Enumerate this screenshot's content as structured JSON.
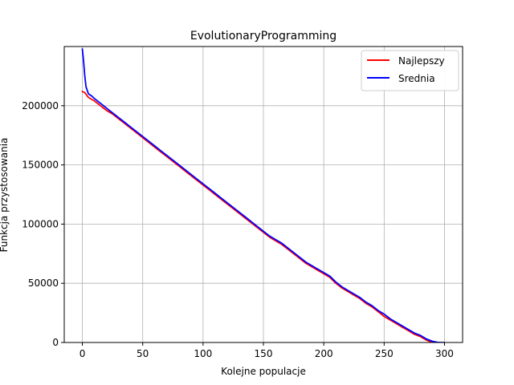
{
  "chart_data": {
    "type": "line",
    "title": "EvolutionaryProgramming",
    "xlabel": "Kolejne populacje",
    "ylabel": "Funkcja przystosowania",
    "xlim": [
      -15,
      315
    ],
    "ylim": [
      0,
      250000
    ],
    "xticks": [
      0,
      50,
      100,
      150,
      200,
      250,
      300
    ],
    "yticks": [
      0,
      50000,
      100000,
      150000,
      200000
    ],
    "xtick_labels": [
      "0",
      "50",
      "100",
      "150",
      "200",
      "250",
      "300"
    ],
    "ytick_labels": [
      "0",
      "50000",
      "100000",
      "150000",
      "200000"
    ],
    "grid": true,
    "legend": "top-right",
    "series": [
      {
        "name": "Najlepszy",
        "color": "#ff0000",
        "x": [
          0,
          2,
          5,
          10,
          15,
          20,
          25,
          30,
          35,
          40,
          45,
          50,
          55,
          60,
          65,
          70,
          75,
          80,
          85,
          90,
          95,
          100,
          105,
          110,
          115,
          120,
          125,
          130,
          135,
          140,
          145,
          150,
          155,
          160,
          165,
          170,
          175,
          180,
          185,
          190,
          195,
          200,
          205,
          210,
          215,
          220,
          225,
          230,
          235,
          240,
          245,
          250,
          255,
          260,
          265,
          270,
          275,
          280,
          285,
          290,
          293,
          296
        ],
        "y": [
          212000,
          211000,
          207000,
          204000,
          200000,
          196000,
          193000,
          189000,
          185000,
          181000,
          177000,
          173000,
          169000,
          165000,
          161000,
          157000,
          153000,
          149000,
          145000,
          141000,
          137000,
          133000,
          129000,
          125000,
          121000,
          117000,
          113000,
          109000,
          105000,
          101000,
          97000,
          93000,
          89000,
          86000,
          83000,
          79000,
          75000,
          71000,
          67000,
          64000,
          61000,
          58000,
          55000,
          50000,
          46000,
          43000,
          40000,
          37000,
          33000,
          30000,
          26000,
          22000,
          19000,
          16000,
          13000,
          10000,
          7000,
          5000,
          2000,
          0,
          0,
          0
        ]
      },
      {
        "name": "Srednia",
        "color": "#0000ff",
        "x": [
          0,
          1,
          2,
          3,
          5,
          8,
          10,
          15,
          20,
          25,
          30,
          35,
          40,
          45,
          50,
          55,
          60,
          65,
          70,
          75,
          80,
          85,
          90,
          95,
          100,
          105,
          110,
          115,
          120,
          125,
          130,
          135,
          140,
          145,
          150,
          155,
          160,
          165,
          170,
          175,
          180,
          185,
          190,
          195,
          200,
          205,
          210,
          215,
          220,
          225,
          230,
          235,
          240,
          245,
          250,
          255,
          260,
          265,
          270,
          275,
          280,
          285,
          290,
          295,
          300
        ],
        "y": [
          248000,
          238000,
          225000,
          216000,
          210000,
          208000,
          206000,
          202000,
          198000,
          194000,
          190000,
          186000,
          182000,
          178000,
          174000,
          170000,
          166000,
          162000,
          158000,
          154000,
          150000,
          146000,
          142000,
          138000,
          134000,
          130000,
          126000,
          122000,
          118000,
          114000,
          110000,
          106000,
          102000,
          98000,
          94000,
          90000,
          87000,
          84000,
          80000,
          76000,
          72000,
          68000,
          65000,
          62000,
          59000,
          56000,
          51000,
          47000,
          44000,
          41000,
          38000,
          34000,
          31000,
          27000,
          24000,
          20000,
          17000,
          14000,
          11000,
          8000,
          6000,
          3000,
          1000,
          0,
          0
        ]
      }
    ]
  }
}
